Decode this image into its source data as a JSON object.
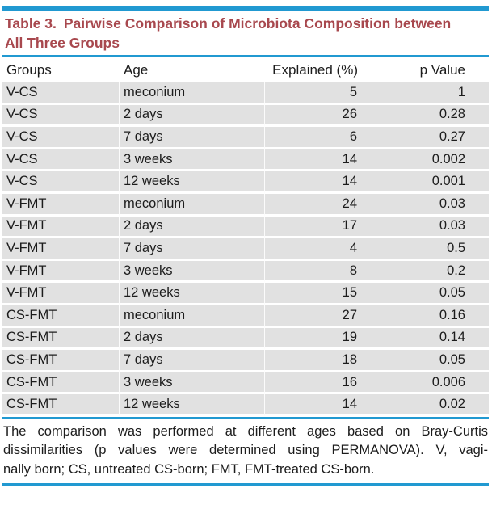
{
  "colors": {
    "rule_blue": "#2199d1",
    "title_red": "#a8484e",
    "row_gray": "#e1e1e1"
  },
  "title": {
    "label": "Table 3.",
    "text": "Pairwise Comparison of Microbiota Composition between All Three Groups"
  },
  "table": {
    "headers": [
      "Groups",
      "Age",
      "Explained (%)",
      "p Value"
    ],
    "rows": [
      [
        "V-CS",
        "meconium",
        "5",
        "1"
      ],
      [
        "V-CS",
        "2 days",
        "26",
        "0.28"
      ],
      [
        "V-CS",
        "7 days",
        "6",
        "0.27"
      ],
      [
        "V-CS",
        "3 weeks",
        "14",
        "0.002"
      ],
      [
        "V-CS",
        "12 weeks",
        "14",
        "0.001"
      ],
      [
        "V-FMT",
        "meconium",
        "24",
        "0.03"
      ],
      [
        "V-FMT",
        "2 days",
        "17",
        "0.03"
      ],
      [
        "V-FMT",
        "7 days",
        "4",
        "0.5"
      ],
      [
        "V-FMT",
        "3 weeks",
        "8",
        "0.2"
      ],
      [
        "V-FMT",
        "12 weeks",
        "15",
        "0.05"
      ],
      [
        "CS-FMT",
        "meconium",
        "27",
        "0.16"
      ],
      [
        "CS-FMT",
        "2 days",
        "19",
        "0.14"
      ],
      [
        "CS-FMT",
        "7 days",
        "18",
        "0.05"
      ],
      [
        "CS-FMT",
        "3 weeks",
        "16",
        "0.006"
      ],
      [
        "CS-FMT",
        "12 weeks",
        "14",
        "0.02"
      ]
    ]
  },
  "footnote": {
    "lines": [
      "The comparison was performed at different ages based on Bray-Curtis",
      "dissimilarities (p values were determined using PERMANOVA). V, vagi-",
      "nally born; CS, untreated CS-born; FMT, FMT-treated CS-born."
    ]
  }
}
